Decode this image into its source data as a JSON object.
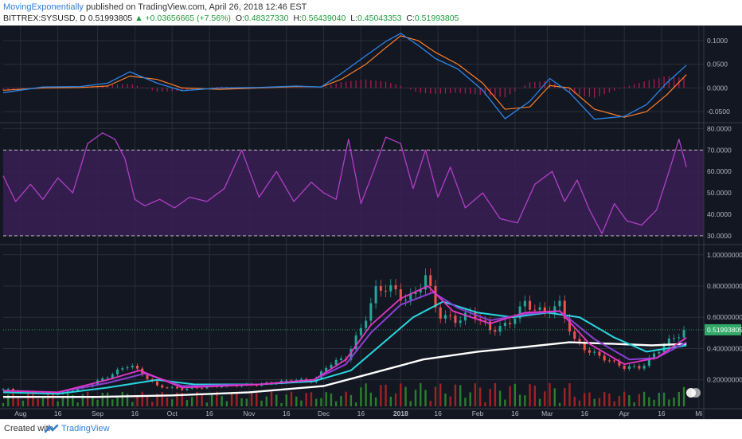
{
  "header": {
    "author": "MovingExponentially",
    "published_text": "published on TradingView.com, April 26, 2018 12:46 EST",
    "symbol": "BITTREX:SYSUSD, D",
    "last": "0.51993805",
    "change": "▲ +0.03656665 (+7.56%)",
    "o_label": "O:",
    "o_value": "0.48327330",
    "h_label": "H:",
    "h_value": "0.56439040",
    "l_label": "L:",
    "l_value": "0.45043353",
    "c_label": "C:",
    "c_value": "0.51993805"
  },
  "footer": {
    "created_with": "Created with",
    "brand": "TradingView"
  },
  "colors": {
    "background": "#131722",
    "grid": "#2a2e39",
    "axis_text": "#b2b5be",
    "macd": "#2b86ea",
    "signal": "#ff7f2a",
    "hist": "#d81b60",
    "rsi": "#b03fc7",
    "rsi_band": "#3a1f54",
    "ema_fast": "#e535c7",
    "ema_mid": "#8a3fd6",
    "ema_cyan": "#29d7e0",
    "ema_slow": "#ffffff",
    "up": "#26a69a",
    "down": "#ef5350",
    "vol_up": "#2e8b2e",
    "vol_down": "#b22222",
    "price_tag": "#2fa968"
  },
  "chart_data": [
    {
      "type": "line",
      "name": "MACD",
      "x_range": [
        "2017-07-25",
        "2018-04-26"
      ],
      "ylim": [
        -0.07,
        0.125
      ],
      "yticks": [
        "0.1000",
        "0.0500",
        "0.0000",
        "-0.0500"
      ],
      "ytick_values": [
        0.1,
        0.05,
        0.0,
        -0.05
      ],
      "series": [
        {
          "key": "macd",
          "x": [
            "2017-07-25",
            "2017-08-10",
            "2017-08-25",
            "2017-09-05",
            "2017-09-14",
            "2017-09-25",
            "2017-10-05",
            "2017-10-20",
            "2017-11-05",
            "2017-11-20",
            "2017-11-30",
            "2017-12-08",
            "2017-12-18",
            "2017-12-26",
            "2018-01-01",
            "2018-01-08",
            "2018-01-15",
            "2018-01-24",
            "2018-02-03",
            "2018-02-12",
            "2018-02-22",
            "2018-03-02",
            "2018-03-10",
            "2018-03-20",
            "2018-04-01",
            "2018-04-10",
            "2018-04-18",
            "2018-04-26"
          ],
          "y": [
            -0.01,
            0.002,
            0.003,
            0.01,
            0.034,
            0.01,
            -0.006,
            0.0,
            0.001,
            0.004,
            0.002,
            0.03,
            0.068,
            0.098,
            0.115,
            0.09,
            0.062,
            0.04,
            -0.005,
            -0.065,
            -0.028,
            0.02,
            -0.01,
            -0.066,
            -0.06,
            -0.035,
            0.01,
            0.048
          ]
        },
        {
          "key": "signal",
          "x": [
            "2017-07-25",
            "2017-08-10",
            "2017-08-25",
            "2017-09-05",
            "2017-09-14",
            "2017-09-25",
            "2017-10-05",
            "2017-10-20",
            "2017-11-05",
            "2017-11-20",
            "2017-11-30",
            "2017-12-08",
            "2017-12-18",
            "2017-12-26",
            "2018-01-01",
            "2018-01-08",
            "2018-01-15",
            "2018-01-24",
            "2018-02-03",
            "2018-02-12",
            "2018-02-22",
            "2018-03-02",
            "2018-03-10",
            "2018-03-20",
            "2018-04-01",
            "2018-04-10",
            "2018-04-18",
            "2018-04-26"
          ],
          "y": [
            -0.005,
            0.0,
            0.001,
            0.004,
            0.025,
            0.018,
            0.0,
            -0.003,
            0.0,
            0.003,
            0.002,
            0.018,
            0.05,
            0.085,
            0.11,
            0.1,
            0.075,
            0.05,
            0.01,
            -0.045,
            -0.04,
            0.005,
            0.0,
            -0.045,
            -0.062,
            -0.05,
            -0.015,
            0.028
          ]
        },
        {
          "key": "hist",
          "type": "bar",
          "x": [
            "2017-07-25",
            "2017-08-10",
            "2017-08-25",
            "2017-09-05",
            "2017-09-14",
            "2017-09-25",
            "2017-10-05",
            "2017-10-20",
            "2017-11-05",
            "2017-11-20",
            "2017-11-30",
            "2017-12-08",
            "2017-12-18",
            "2017-12-26",
            "2018-01-01",
            "2018-01-08",
            "2018-01-15",
            "2018-01-24",
            "2018-02-03",
            "2018-02-12",
            "2018-02-22",
            "2018-03-02",
            "2018-03-10",
            "2018-03-20",
            "2018-04-01",
            "2018-04-10",
            "2018-04-18",
            "2018-04-26"
          ],
          "y": [
            -0.005,
            0.002,
            0.002,
            0.006,
            0.009,
            -0.008,
            -0.006,
            0.003,
            0.001,
            0.001,
            0.0,
            0.012,
            0.018,
            0.013,
            0.005,
            -0.01,
            -0.013,
            -0.01,
            -0.015,
            -0.02,
            0.012,
            0.015,
            -0.01,
            -0.021,
            0.002,
            0.015,
            0.025,
            0.02
          ]
        }
      ]
    },
    {
      "type": "line",
      "name": "RSI",
      "ylim": [
        27,
        82
      ],
      "yticks": [
        "80.0000",
        "70.0000",
        "60.0000",
        "50.0000",
        "40.0000",
        "30.0000"
      ],
      "ytick_values": [
        80,
        70,
        60,
        50,
        40,
        30
      ],
      "bands": [
        30,
        70
      ],
      "series": [
        {
          "key": "rsi",
          "x": [
            "2017-07-25",
            "2017-07-30",
            "2017-08-05",
            "2017-08-10",
            "2017-08-16",
            "2017-08-22",
            "2017-08-28",
            "2017-09-03",
            "2017-09-08",
            "2017-09-12",
            "2017-09-16",
            "2017-09-20",
            "2017-09-26",
            "2017-10-02",
            "2017-10-08",
            "2017-10-15",
            "2017-10-22",
            "2017-10-29",
            "2017-11-05",
            "2017-11-12",
            "2017-11-19",
            "2017-11-26",
            "2017-12-01",
            "2017-12-06",
            "2017-12-11",
            "2017-12-16",
            "2017-12-21",
            "2017-12-26",
            "2018-01-01",
            "2018-01-06",
            "2018-01-11",
            "2018-01-16",
            "2018-01-21",
            "2018-01-27",
            "2018-02-03",
            "2018-02-10",
            "2018-02-17",
            "2018-02-24",
            "2018-03-03",
            "2018-03-08",
            "2018-03-13",
            "2018-03-18",
            "2018-03-23",
            "2018-03-28",
            "2018-04-02",
            "2018-04-08",
            "2018-04-14",
            "2018-04-19",
            "2018-04-23",
            "2018-04-26"
          ],
          "y": [
            58,
            46,
            54,
            47,
            57,
            50,
            73,
            78,
            75,
            66,
            47,
            44,
            47,
            43,
            48,
            46,
            52,
            70,
            48,
            60,
            46,
            55,
            50,
            47,
            75,
            45,
            60,
            76,
            73,
            52,
            70,
            48,
            62,
            43,
            50,
            38,
            36,
            54,
            60,
            46,
            56,
            42,
            31,
            45,
            37,
            35,
            42,
            60,
            75,
            62
          ]
        }
      ]
    },
    {
      "type": "line",
      "name": "Price",
      "ylim": [
        0.03,
        1.05
      ],
      "yticks": [
        "1.00000000",
        "0.80000000",
        "0.60000000",
        "0.40000000",
        "0.20000000"
      ],
      "ytick_values": [
        1.0,
        0.8,
        0.6,
        0.4,
        0.2
      ],
      "last_price_label": "0.51993805",
      "last_price": 0.51993805,
      "series": [
        {
          "key": "close",
          "x": [
            "2017-07-25",
            "2017-08-05",
            "2017-08-16",
            "2017-08-28",
            "2017-09-05",
            "2017-09-14",
            "2017-09-25",
            "2017-10-05",
            "2017-10-20",
            "2017-11-05",
            "2017-11-20",
            "2017-11-27",
            "2017-12-03",
            "2017-12-10",
            "2017-12-17",
            "2017-12-22",
            "2017-12-27",
            "2018-01-01",
            "2018-01-06",
            "2018-01-11",
            "2018-01-16",
            "2018-01-23",
            "2018-01-30",
            "2018-02-06",
            "2018-02-13",
            "2018-02-20",
            "2018-02-27",
            "2018-03-06",
            "2018-03-12",
            "2018-03-18",
            "2018-03-25",
            "2018-04-01",
            "2018-04-08",
            "2018-04-14",
            "2018-04-20",
            "2018-04-26"
          ],
          "y": [
            0.14,
            0.12,
            0.11,
            0.16,
            0.22,
            0.3,
            0.16,
            0.14,
            0.16,
            0.17,
            0.2,
            0.19,
            0.3,
            0.34,
            0.56,
            0.77,
            0.8,
            0.73,
            0.72,
            0.87,
            0.62,
            0.58,
            0.63,
            0.52,
            0.55,
            0.69,
            0.63,
            0.68,
            0.45,
            0.38,
            0.33,
            0.28,
            0.28,
            0.38,
            0.46,
            0.52
          ]
        },
        {
          "key": "ema_fast",
          "x": [
            "2017-07-25",
            "2017-08-16",
            "2017-09-05",
            "2017-09-18",
            "2017-10-05",
            "2017-11-05",
            "2017-11-27",
            "2017-12-10",
            "2017-12-20",
            "2018-01-01",
            "2018-01-12",
            "2018-01-22",
            "2018-02-06",
            "2018-02-20",
            "2018-03-06",
            "2018-03-18",
            "2018-04-01",
            "2018-04-14",
            "2018-04-26"
          ],
          "y": [
            0.13,
            0.12,
            0.2,
            0.26,
            0.15,
            0.17,
            0.2,
            0.33,
            0.55,
            0.72,
            0.8,
            0.64,
            0.56,
            0.63,
            0.64,
            0.43,
            0.3,
            0.34,
            0.47
          ]
        },
        {
          "key": "ema_mid",
          "x": [
            "2017-07-25",
            "2017-08-16",
            "2017-09-05",
            "2017-09-20",
            "2017-10-05",
            "2017-11-05",
            "2017-11-27",
            "2017-12-10",
            "2017-12-20",
            "2018-01-01",
            "2018-01-14",
            "2018-01-24",
            "2018-02-06",
            "2018-02-20",
            "2018-03-06",
            "2018-03-20",
            "2018-04-03",
            "2018-04-14",
            "2018-04-26"
          ],
          "y": [
            0.13,
            0.12,
            0.18,
            0.24,
            0.16,
            0.17,
            0.2,
            0.3,
            0.5,
            0.68,
            0.76,
            0.66,
            0.58,
            0.62,
            0.64,
            0.46,
            0.33,
            0.34,
            0.44
          ]
        },
        {
          "key": "ema_cyan",
          "x": [
            "2017-07-25",
            "2017-08-16",
            "2017-09-05",
            "2017-09-25",
            "2017-10-10",
            "2017-11-05",
            "2017-11-27",
            "2017-12-12",
            "2017-12-26",
            "2018-01-06",
            "2018-01-18",
            "2018-02-01",
            "2018-02-15",
            "2018-03-01",
            "2018-03-14",
            "2018-03-28",
            "2018-04-10",
            "2018-04-26"
          ],
          "y": [
            0.12,
            0.11,
            0.15,
            0.2,
            0.17,
            0.17,
            0.19,
            0.26,
            0.45,
            0.6,
            0.7,
            0.63,
            0.6,
            0.63,
            0.6,
            0.47,
            0.38,
            0.42
          ]
        },
        {
          "key": "ema_slow",
          "x": [
            "2017-07-25",
            "2017-09-01",
            "2017-10-01",
            "2017-11-01",
            "2017-12-01",
            "2017-12-20",
            "2018-01-10",
            "2018-02-01",
            "2018-02-20",
            "2018-03-10",
            "2018-03-28",
            "2018-04-12",
            "2018-04-26"
          ],
          "y": [
            0.09,
            0.09,
            0.1,
            0.12,
            0.16,
            0.24,
            0.33,
            0.38,
            0.41,
            0.44,
            0.43,
            0.42,
            0.43
          ]
        }
      ]
    }
  ],
  "x_axis": {
    "labels": [
      "Aug",
      "16",
      "Sep",
      "16",
      "Oct",
      "16",
      "Nov",
      "16",
      "Dec",
      "16",
      "2018",
      "16",
      "Feb",
      "16",
      "Mar",
      "16",
      "Apr",
      "16",
      "Mi"
    ],
    "dates": [
      "2017-08-01",
      "2017-08-16",
      "2017-09-01",
      "2017-09-16",
      "2017-10-01",
      "2017-10-16",
      "2017-11-01",
      "2017-11-16",
      "2017-12-01",
      "2017-12-16",
      "2018-01-01",
      "2018-01-16",
      "2018-02-01",
      "2018-02-16",
      "2018-03-01",
      "2018-03-16",
      "2018-04-01",
      "2018-04-16",
      "2018-05-01"
    ],
    "start": "2017-07-25",
    "end": "2018-05-03"
  }
}
